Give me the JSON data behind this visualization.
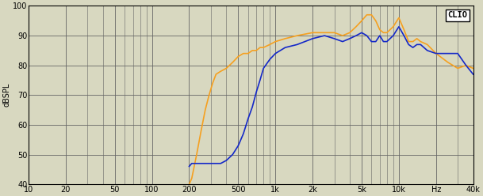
{
  "title": "CLIO",
  "ylabel": "dBSPL",
  "xmin": 10,
  "xmax": 40000,
  "ymin": 40,
  "ymax": 100,
  "yticks": [
    40,
    50,
    60,
    70,
    80,
    90,
    100
  ],
  "xticks": [
    10,
    20,
    50,
    100,
    200,
    500,
    1000,
    2000,
    5000,
    10000,
    20000,
    40000
  ],
  "xticklabels": [
    "10",
    "20",
    "50",
    "100",
    "200",
    "500",
    "1k",
    "2k",
    "5k",
    "10k",
    "Hz",
    "40k"
  ],
  "orange_color": "#F5A020",
  "blue_color": "#1428C8",
  "bg_color": "#D8D8C0",
  "grid_color": "#666666",
  "orange_x": [
    200,
    210,
    230,
    250,
    270,
    290,
    310,
    330,
    360,
    400,
    450,
    500,
    550,
    600,
    650,
    700,
    750,
    800,
    900,
    1000,
    1200,
    1500,
    2000,
    2500,
    3000,
    3500,
    4000,
    4500,
    5000,
    5500,
    6000,
    6500,
    7000,
    7500,
    8000,
    9000,
    10000,
    11000,
    12000,
    13000,
    14000,
    15000,
    17000,
    20000,
    25000,
    30000,
    35000,
    40000
  ],
  "orange_y": [
    40,
    42,
    50,
    58,
    65,
    70,
    74,
    77,
    78,
    79,
    81,
    83,
    84,
    84,
    85,
    85,
    86,
    86,
    87,
    88,
    89,
    90,
    91,
    91,
    91,
    90,
    91,
    93,
    95,
    97,
    97,
    95,
    92,
    91,
    91,
    93,
    96,
    92,
    88,
    88,
    89,
    88,
    87,
    84,
    81,
    79,
    80,
    79
  ],
  "blue_x": [
    200,
    210,
    230,
    250,
    270,
    290,
    310,
    330,
    360,
    400,
    450,
    500,
    550,
    600,
    650,
    700,
    750,
    800,
    900,
    1000,
    1200,
    1500,
    2000,
    2500,
    3000,
    3500,
    4000,
    4500,
    5000,
    5500,
    6000,
    6500,
    7000,
    7500,
    8000,
    9000,
    10000,
    11000,
    12000,
    13000,
    14000,
    15000,
    17000,
    20000,
    25000,
    30000,
    35000,
    40000
  ],
  "blue_y": [
    46,
    47,
    47,
    47,
    47,
    47,
    47,
    47,
    47,
    48,
    50,
    53,
    57,
    62,
    66,
    71,
    75,
    79,
    82,
    84,
    86,
    87,
    89,
    90,
    89,
    88,
    89,
    90,
    91,
    90,
    88,
    88,
    90,
    88,
    88,
    90,
    93,
    90,
    87,
    86,
    87,
    87,
    85,
    84,
    84,
    84,
    80,
    77
  ]
}
